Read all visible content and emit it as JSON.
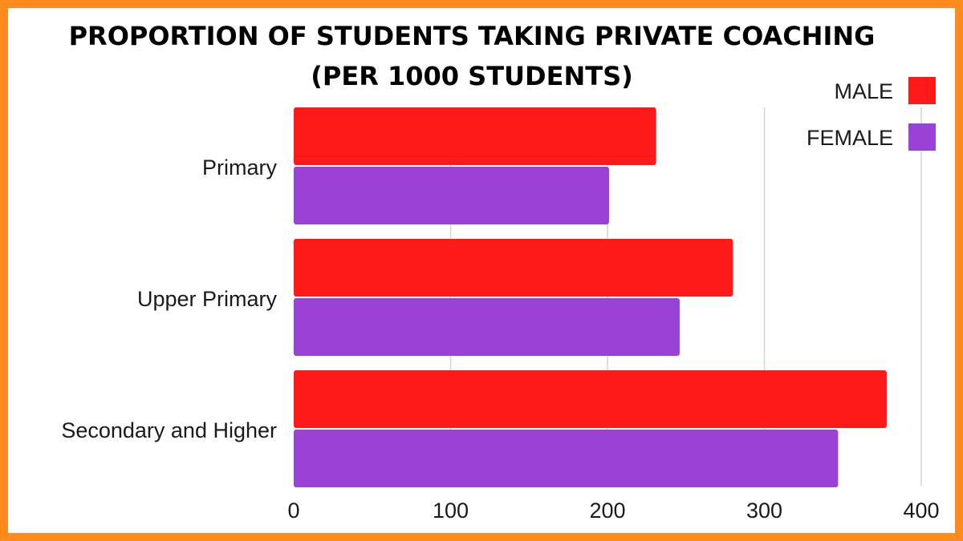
{
  "chart_data": {
    "type": "bar",
    "orientation": "horizontal",
    "title": "PROPORTION OF STUDENTS TAKING PRIVATE COACHING",
    "subtitle": "(PER 1000 STUDENTS)",
    "categories": [
      "Primary",
      "Upper Primary",
      "Secondary and Higher"
    ],
    "series": [
      {
        "name": "MALE",
        "color": "#ff1a1a",
        "values": [
          231,
          280,
          378
        ]
      },
      {
        "name": "FEMALE",
        "color": "#9b42d6",
        "values": [
          201,
          246,
          347
        ]
      }
    ],
    "xlim": [
      0,
      400
    ],
    "xticks": [
      0,
      100,
      200,
      300,
      400
    ],
    "xlabel": "",
    "ylabel": "",
    "grid": true,
    "legend_position": "top-right",
    "frame_color": "#ff8a1e"
  }
}
